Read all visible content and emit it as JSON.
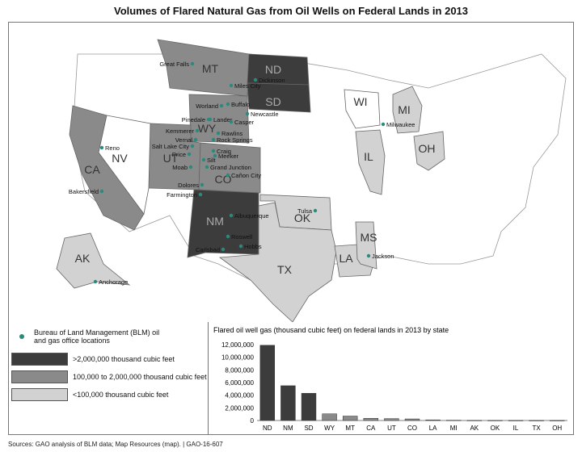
{
  "title": "Volumes of Flared Natural Gas from Oil Wells on Federal Lands in 2013",
  "colors": {
    "dark": "#3c3c3c",
    "medium": "#8a8a8a",
    "light": "#d2d2d2",
    "none": "#ffffff",
    "dot": "#2a8a7d"
  },
  "states": [
    {
      "abbr": "MT",
      "tier": "medium"
    },
    {
      "abbr": "ND",
      "tier": "dark"
    },
    {
      "abbr": "SD",
      "tier": "dark"
    },
    {
      "abbr": "WY",
      "tier": "medium"
    },
    {
      "abbr": "UT",
      "tier": "medium"
    },
    {
      "abbr": "CO",
      "tier": "medium"
    },
    {
      "abbr": "CA",
      "tier": "medium"
    },
    {
      "abbr": "NV",
      "tier": "none"
    },
    {
      "abbr": "NM",
      "tier": "dark"
    },
    {
      "abbr": "OK",
      "tier": "light"
    },
    {
      "abbr": "TX",
      "tier": "light"
    },
    {
      "abbr": "LA",
      "tier": "light"
    },
    {
      "abbr": "MS",
      "tier": "light"
    },
    {
      "abbr": "IL",
      "tier": "light"
    },
    {
      "abbr": "OH",
      "tier": "light"
    },
    {
      "abbr": "MI",
      "tier": "light"
    },
    {
      "abbr": "WI",
      "tier": "none"
    },
    {
      "abbr": "AK",
      "tier": "light"
    }
  ],
  "offices": [
    "Great Falls",
    "Miles City",
    "Dickinson",
    "Worland",
    "Buffalo",
    "Newcastle",
    "Pinedale",
    "Lander",
    "Casper",
    "Kemmerer",
    "Rawlins",
    "Rock Springs",
    "Vernal",
    "Salt Lake City",
    "Craig",
    "Meeker",
    "Price",
    "Silt",
    "Moab",
    "Grand Junction",
    "Cañon City",
    "Dolores",
    "Farmington",
    "Reno",
    "Bakersfield",
    "Albuquerque",
    "Roswell",
    "Carlsbad",
    "Hobbs",
    "Tulsa",
    "Jackson",
    "Milwaukee",
    "Anchorage"
  ],
  "legend": {
    "office_label": "Bureau of Land Management (BLM) oil and gas office locations",
    "tiers": [
      ">2,000,000 thousand cubic feet",
      "100,000 to 2,000,000 thousand cubic feet",
      "<100,000 thousand cubic feet"
    ]
  },
  "chart_data": {
    "type": "bar",
    "title": "Flared oil well gas (thousand cubic feet) on federal lands in 2013 by state",
    "categories": [
      "ND",
      "NM",
      "SD",
      "WY",
      "MT",
      "CA",
      "UT",
      "CO",
      "LA",
      "MI",
      "AK",
      "OK",
      "IL",
      "TX",
      "OH"
    ],
    "values": [
      11900000,
      5500000,
      4300000,
      1050000,
      700000,
      350000,
      300000,
      250000,
      100000,
      50000,
      20000,
      15000,
      10000,
      8000,
      5000
    ],
    "ylim": [
      0,
      12000000
    ],
    "yticks": [
      "0",
      "2,000,000",
      "4,000,000",
      "6,000,000",
      "8,000,000",
      "10,000,000",
      "12,000,000"
    ]
  },
  "source": "Sources: GAO analysis of BLM data; Map Resources (map).  |  GAO-16-607"
}
